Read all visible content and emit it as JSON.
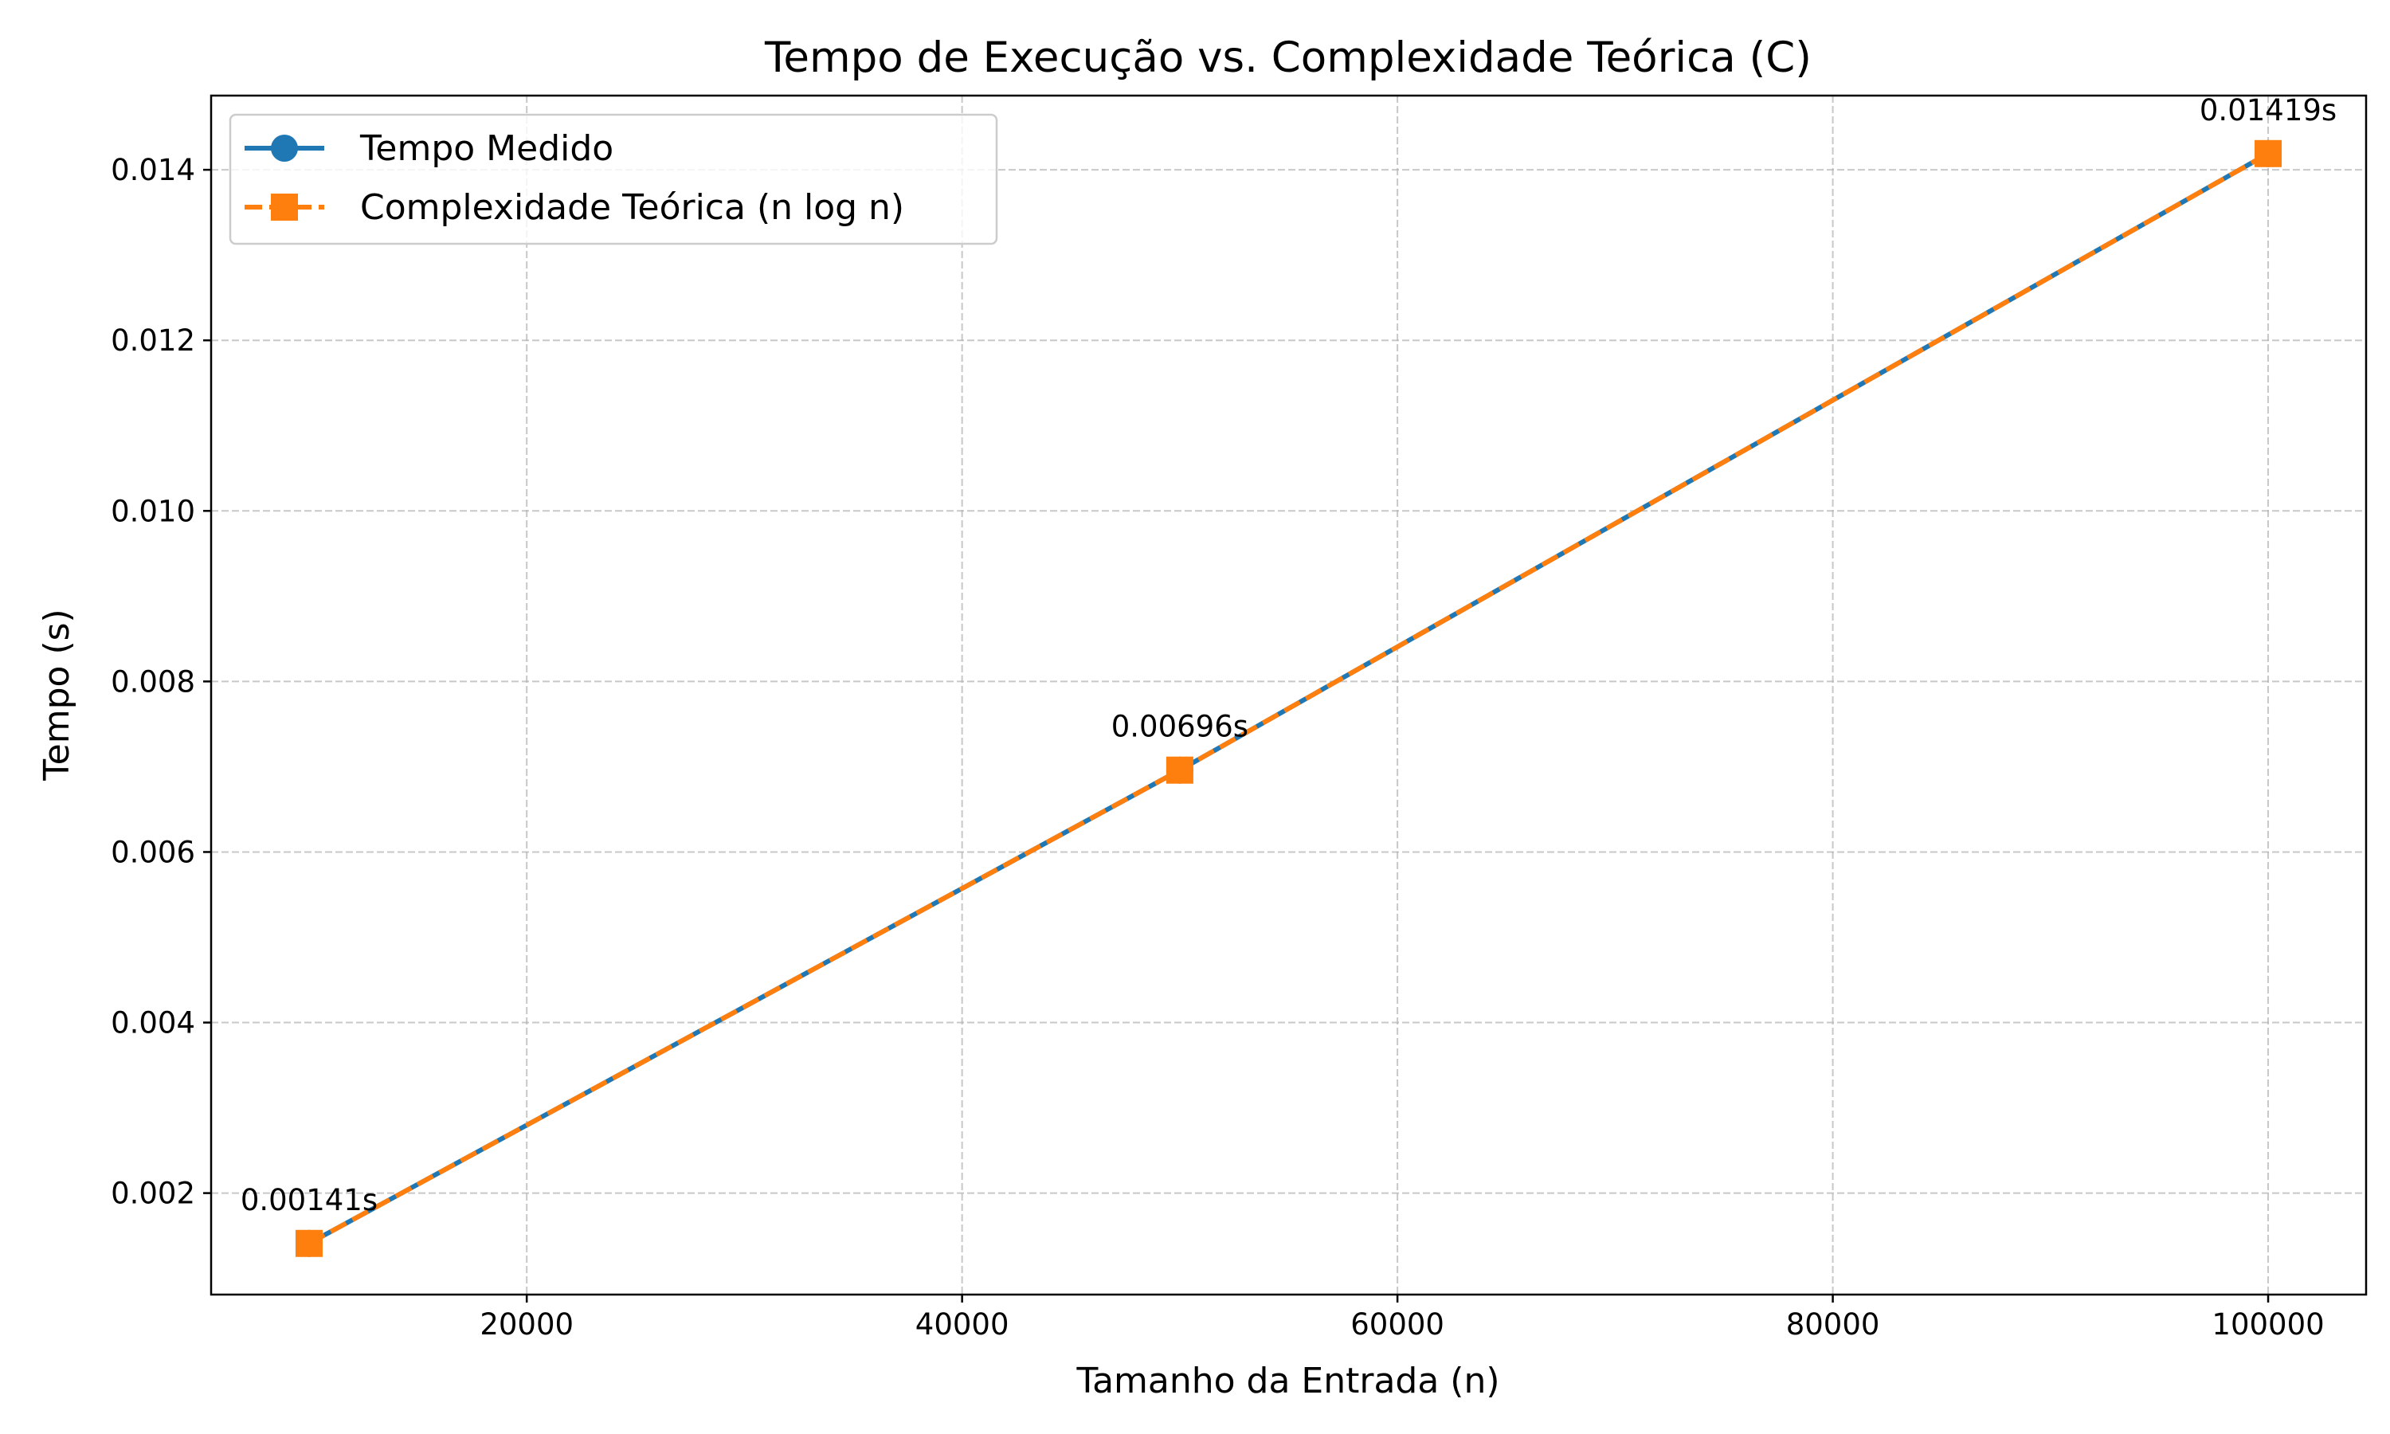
{
  "chart_data": {
    "type": "line",
    "title": "Tempo de Execução vs. Complexidade Teórica (C)",
    "xlabel": "Tamanho da Entrada (n)",
    "ylabel": "Tempo (s)",
    "xlim": [
      5500,
      104500
    ],
    "ylim": [
      0.00081,
      0.01487
    ],
    "xticks": [
      20000,
      40000,
      60000,
      80000,
      100000
    ],
    "xtick_labels": [
      "20000",
      "40000",
      "60000",
      "80000",
      "100000"
    ],
    "yticks": [
      0.002,
      0.004,
      0.006,
      0.008,
      0.01,
      0.012,
      0.014
    ],
    "ytick_labels": [
      "0.002",
      "0.004",
      "0.006",
      "0.008",
      "0.010",
      "0.012",
      "0.014"
    ],
    "grid": true,
    "legend_position": "top-left",
    "x": [
      10000,
      50000,
      100000
    ],
    "series": [
      {
        "name": "Tempo Medido",
        "values": [
          0.00141,
          0.00696,
          0.01419
        ],
        "color": "#1f77b4",
        "marker": "circle",
        "line_style": "solid"
      },
      {
        "name": "Complexidade Teórica (n log n)",
        "values": [
          0.00141,
          0.00696,
          0.01419
        ],
        "color": "#ff7f0e",
        "marker": "square",
        "line_style": "dashed"
      }
    ],
    "annotations": [
      "0.00141s",
      "0.00696s",
      "0.01419s"
    ]
  }
}
